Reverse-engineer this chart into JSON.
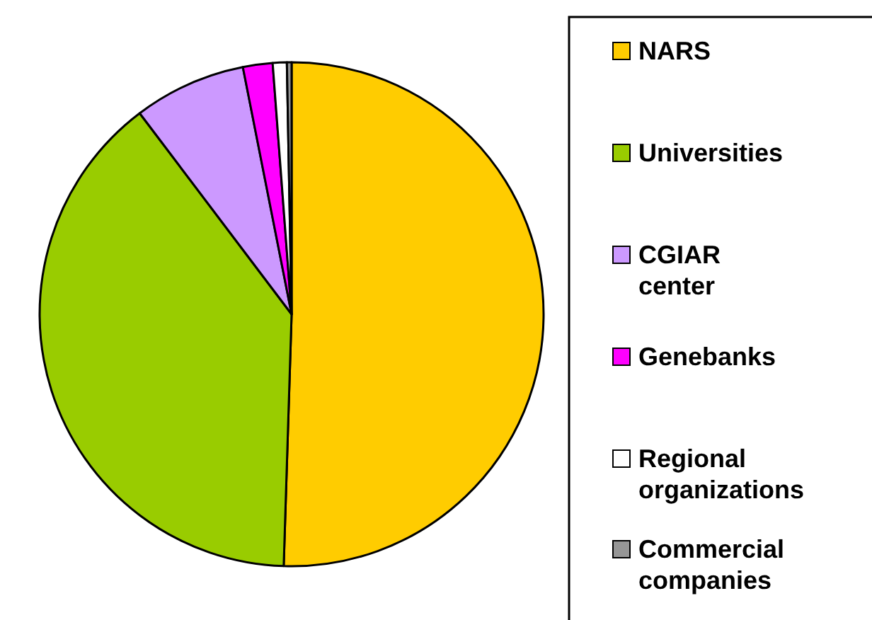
{
  "chart_data": {
    "type": "pie",
    "categories": [
      "NARS",
      "Universities",
      "CGIAR center",
      "Genebanks",
      "Regional organizations",
      "Commercial companies"
    ],
    "values": [
      50.5,
      39.2,
      7.2,
      1.9,
      0.9,
      0.3
    ],
    "colors": [
      "#ffcc00",
      "#99cc00",
      "#cc99ff",
      "#ff00ff",
      "#ffffff",
      "#969696"
    ],
    "legend": "right"
  }
}
